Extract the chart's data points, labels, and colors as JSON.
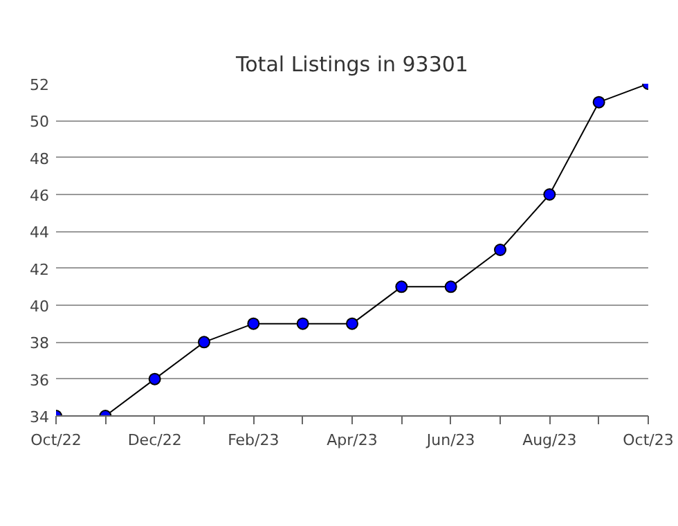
{
  "chart_data": {
    "type": "line",
    "title": "Total Listings in 93301",
    "categories": [
      "Oct/22",
      null,
      "Dec/22",
      null,
      "Feb/23",
      null,
      "Apr/23",
      null,
      "Jun/23",
      null,
      "Aug/23",
      null,
      "Oct/23"
    ],
    "series": [
      {
        "color": "#0000ff",
        "values": [
          34,
          34,
          36,
          38,
          39,
          39,
          39,
          41,
          41,
          43,
          46,
          51,
          52
        ]
      }
    ],
    "ylim": [
      34,
      52
    ],
    "yticks": [
      34,
      36,
      38,
      40,
      42,
      44,
      46,
      48,
      50,
      52
    ],
    "grid": "y",
    "marker": "circle",
    "line_style": "solid"
  }
}
